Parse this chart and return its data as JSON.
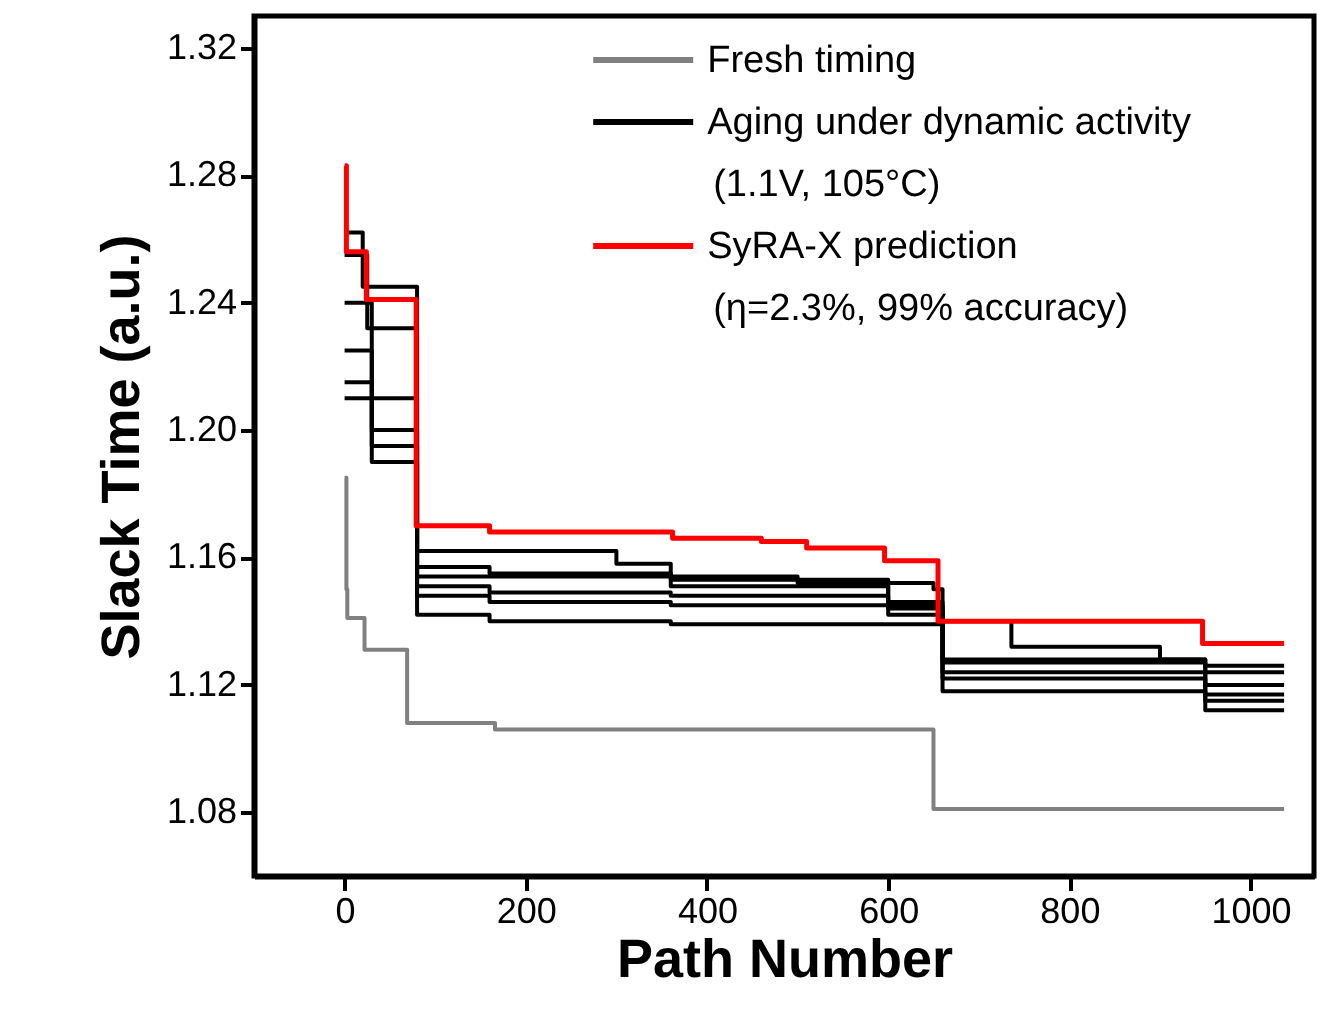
{
  "chart_data": {
    "type": "step",
    "xlabel": "Path Number",
    "ylabel": "Slack Time (a.u.)",
    "xlim": [
      -100,
      1070
    ],
    "ylim": [
      1.06,
      1.33
    ],
    "xticks": [
      0,
      200,
      400,
      600,
      800,
      1000
    ],
    "yticks": [
      {
        "value": 1.08,
        "label": "1.08"
      },
      {
        "value": 1.12,
        "label": "1.12"
      },
      {
        "value": 1.16,
        "label": "1.16"
      },
      {
        "value": 1.2,
        "label": "1.20"
      },
      {
        "value": 1.24,
        "label": "1.24"
      },
      {
        "value": 1.28,
        "label": "1.28"
      },
      {
        "value": 1.32,
        "label": "1.32"
      }
    ],
    "grid": false,
    "legend": "top right",
    "marker": "none",
    "line_style": "solid",
    "series": [
      {
        "name": "Fresh timing",
        "color": "#808080",
        "x": [
          0,
          2,
          3,
          22,
          69,
          166,
          650,
          1037
        ],
        "values": [
          1.185,
          1.15,
          1.141,
          1.131,
          1.108,
          1.106,
          1.081,
          1.081
        ]
      },
      {
        "name": "Aging under dynamic activity\n(1.1V, 105°C)",
        "color": "#000000",
        "x": [
          0,
          20,
          80,
          300,
          360,
          500,
          650,
          660,
          736,
          900,
          950,
          1037
        ],
        "values": [
          1.262,
          1.245,
          1.162,
          1.158,
          1.154,
          1.152,
          1.15,
          1.14,
          1.132,
          1.128,
          1.126,
          1.126
        ]
      },
      {
        "color": "#000000",
        "x": [
          0,
          25,
          80,
          160,
          360,
          600,
          660,
          950,
          1037
        ],
        "values": [
          1.255,
          1.232,
          1.157,
          1.155,
          1.153,
          1.146,
          1.128,
          1.124,
          1.124
        ]
      },
      {
        "color": "#000000",
        "x": [
          0,
          30,
          80,
          360,
          600,
          660,
          950,
          1037
        ],
        "values": [
          1.24,
          1.21,
          1.154,
          1.151,
          1.144,
          1.127,
          1.12,
          1.12
        ]
      },
      {
        "color": "#000000",
        "x": [
          0,
          30,
          80,
          160,
          360,
          600,
          660,
          950,
          1037
        ],
        "values": [
          1.225,
          1.2,
          1.151,
          1.149,
          1.148,
          1.142,
          1.124,
          1.117,
          1.117
        ]
      },
      {
        "color": "#000000",
        "x": [
          0,
          30,
          80,
          160,
          360,
          660,
          950,
          1037
        ],
        "values": [
          1.215,
          1.195,
          1.148,
          1.146,
          1.145,
          1.122,
          1.115,
          1.115
        ]
      },
      {
        "color": "#000000",
        "x": [
          0,
          30,
          80,
          160,
          360,
          660,
          950,
          1037
        ],
        "values": [
          1.21,
          1.19,
          1.142,
          1.14,
          1.139,
          1.118,
          1.112,
          1.112
        ]
      },
      {
        "name": "SyRA-X prediction\n(η=2.3%, 99% accuracy)",
        "color": "#ff0000",
        "x": [
          0,
          2,
          24,
          79,
          160,
          362,
          460,
          510,
          596,
          655,
          947,
          1037
        ],
        "values": [
          1.283,
          1.256,
          1.241,
          1.17,
          1.168,
          1.166,
          1.165,
          1.163,
          1.159,
          1.14,
          1.133,
          1.133
        ]
      }
    ]
  }
}
